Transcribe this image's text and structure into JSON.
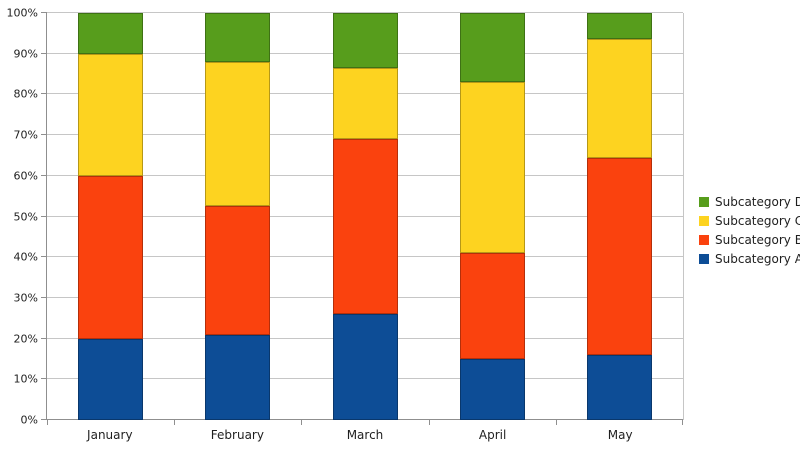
{
  "chart_data": {
    "type": "bar",
    "variant": "stacked-percent-column",
    "categories": [
      "January",
      "February",
      "March",
      "April",
      "May"
    ],
    "series": [
      {
        "name": "Subcategory A",
        "color": "#0d4d96",
        "values": [
          20,
          21,
          26,
          15,
          16
        ]
      },
      {
        "name": "Subcategory B",
        "color": "#fa420e",
        "values": [
          40,
          31.5,
          43,
          26,
          48.5
        ]
      },
      {
        "name": "Subcategory C",
        "color": "#fdd320",
        "values": [
          30,
          35.5,
          17.5,
          42,
          29
        ]
      },
      {
        "name": "Subcategory D",
        "color": "#579d1c",
        "values": [
          10,
          12,
          13.5,
          17,
          6.5
        ]
      }
    ],
    "y_ticks": [
      "0%",
      "10%",
      "20%",
      "30%",
      "40%",
      "50%",
      "60%",
      "70%",
      "80%",
      "90%",
      "100%"
    ],
    "y_tick_values": [
      0,
      10,
      20,
      30,
      40,
      50,
      60,
      70,
      80,
      90,
      100
    ],
    "ylim": [
      0,
      100
    ],
    "grid": "horizontal",
    "legend_position": "right",
    "legend_order": [
      "Subcategory D",
      "Subcategory C",
      "Subcategory B",
      "Subcategory A"
    ],
    "background_color": "#ffffff",
    "gridline_color": "#c6c6c6",
    "axis_color": "#8f8f8f",
    "text_color": "#1f1f1f"
  }
}
